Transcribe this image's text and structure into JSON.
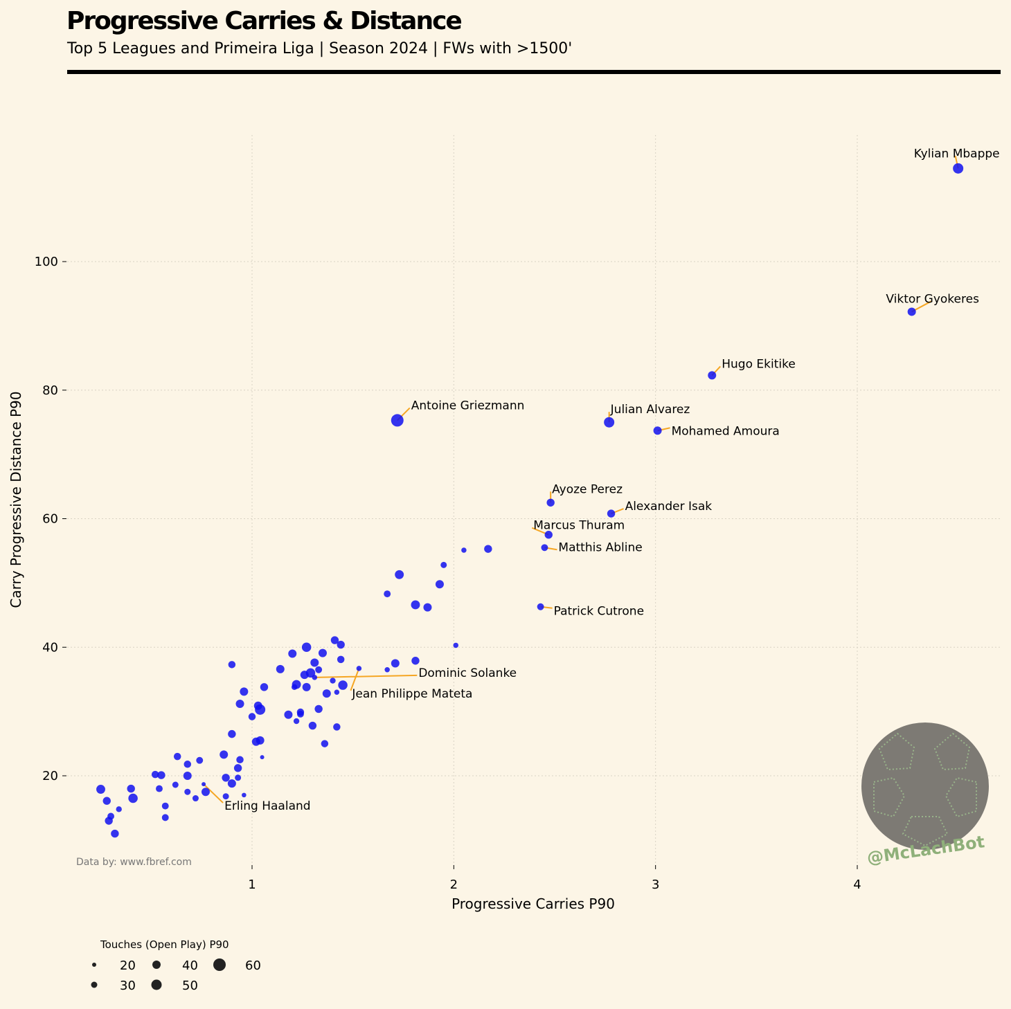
{
  "title": "Progressive Carries & Distance",
  "subtitle": "Top 5 Leagues and Primeira Liga | Season 2024 | FWs with >1500'",
  "source": "Data by: www.fbref.com",
  "watermark": "@McLachBot",
  "chart_data": {
    "type": "scatter",
    "xlabel": "Progressive Carries P90",
    "ylabel": "Carry Progressive Distance P90",
    "xlim": [
      0.08,
      4.7
    ],
    "ylim": [
      7,
      120
    ],
    "x_ticks": [
      1,
      2,
      3,
      4
    ],
    "y_ticks": [
      20,
      40,
      60,
      80,
      100
    ],
    "grid": true,
    "colors": {
      "point": "#1010ee",
      "annotation_line": "#f5a623",
      "background": "#fcf5e6"
    },
    "size_legend": {
      "title": "Touches (Open Play) P90",
      "values": [
        20,
        30,
        40,
        50,
        60
      ]
    },
    "labeled_points": [
      {
        "name": "Kylian Mbappe",
        "x": 4.5,
        "y": 114.5,
        "touches": 50
      },
      {
        "name": "Viktor Gyokeres",
        "x": 4.27,
        "y": 92.2,
        "touches": 40
      },
      {
        "name": "Hugo Ekitike",
        "x": 3.28,
        "y": 82.3,
        "touches": 40
      },
      {
        "name": "Antoine Griezmann",
        "x": 1.72,
        "y": 75.3,
        "touches": 60
      },
      {
        "name": "Julian Alvarez",
        "x": 2.77,
        "y": 75.0,
        "touches": 50
      },
      {
        "name": "Mohamed Amoura",
        "x": 3.01,
        "y": 73.7,
        "touches": 40
      },
      {
        "name": "Ayoze Perez",
        "x": 2.48,
        "y": 62.5,
        "touches": 38
      },
      {
        "name": "Alexander Isak",
        "x": 2.78,
        "y": 60.8,
        "touches": 38
      },
      {
        "name": "Marcus Thuram",
        "x": 2.47,
        "y": 57.5,
        "touches": 38
      },
      {
        "name": "Matthis Abline",
        "x": 2.45,
        "y": 55.5,
        "touches": 33
      },
      {
        "name": "Patrick Cutrone",
        "x": 2.43,
        "y": 46.3,
        "touches": 33
      },
      {
        "name": "Dominic Solanke",
        "x": 1.31,
        "y": 35.3,
        "touches": 25
      },
      {
        "name": "Jean Philippe Mateta",
        "x": 1.53,
        "y": 36.7,
        "touches": 25
      },
      {
        "name": "Erling Haaland",
        "x": 0.76,
        "y": 18.7,
        "touches": 20
      }
    ],
    "points": [
      {
        "x": 2.05,
        "y": 55.1,
        "touches": 25
      },
      {
        "x": 2.17,
        "y": 55.3,
        "touches": 38
      },
      {
        "x": 1.95,
        "y": 52.8,
        "touches": 30
      },
      {
        "x": 1.73,
        "y": 51.3,
        "touches": 43
      },
      {
        "x": 1.93,
        "y": 49.8,
        "touches": 40
      },
      {
        "x": 1.67,
        "y": 48.3,
        "touches": 33
      },
      {
        "x": 1.81,
        "y": 46.6,
        "touches": 43
      },
      {
        "x": 1.87,
        "y": 46.2,
        "touches": 40
      },
      {
        "x": 2.01,
        "y": 40.3,
        "touches": 25
      },
      {
        "x": 1.41,
        "y": 41.1,
        "touches": 38
      },
      {
        "x": 1.44,
        "y": 40.4,
        "touches": 38
      },
      {
        "x": 1.27,
        "y": 40.0,
        "touches": 45
      },
      {
        "x": 1.35,
        "y": 39.1,
        "touches": 40
      },
      {
        "x": 1.2,
        "y": 39.0,
        "touches": 40
      },
      {
        "x": 1.44,
        "y": 38.1,
        "touches": 35
      },
      {
        "x": 1.81,
        "y": 37.9,
        "touches": 38
      },
      {
        "x": 1.31,
        "y": 37.6,
        "touches": 40
      },
      {
        "x": 1.71,
        "y": 37.5,
        "touches": 40
      },
      {
        "x": 0.9,
        "y": 37.3,
        "touches": 35
      },
      {
        "x": 1.14,
        "y": 36.6,
        "touches": 40
      },
      {
        "x": 1.67,
        "y": 36.5,
        "touches": 25
      },
      {
        "x": 1.33,
        "y": 36.5,
        "touches": 33
      },
      {
        "x": 1.29,
        "y": 36.0,
        "touches": 45
      },
      {
        "x": 1.26,
        "y": 35.7,
        "touches": 40
      },
      {
        "x": 1.4,
        "y": 34.8,
        "touches": 28
      },
      {
        "x": 1.45,
        "y": 34.1,
        "touches": 45
      },
      {
        "x": 1.22,
        "y": 34.2,
        "touches": 43
      },
      {
        "x": 1.06,
        "y": 33.8,
        "touches": 38
      },
      {
        "x": 1.27,
        "y": 33.8,
        "touches": 40
      },
      {
        "x": 1.21,
        "y": 33.8,
        "touches": 28
      },
      {
        "x": 0.96,
        "y": 33.1,
        "touches": 40
      },
      {
        "x": 1.42,
        "y": 33.0,
        "touches": 25
      },
      {
        "x": 1.37,
        "y": 32.8,
        "touches": 40
      },
      {
        "x": 0.94,
        "y": 31.2,
        "touches": 40
      },
      {
        "x": 1.03,
        "y": 30.9,
        "touches": 40
      },
      {
        "x": 1.04,
        "y": 30.3,
        "touches": 50
      },
      {
        "x": 1.33,
        "y": 30.4,
        "touches": 38
      },
      {
        "x": 1.24,
        "y": 29.9,
        "touches": 35
      },
      {
        "x": 1.24,
        "y": 29.6,
        "touches": 33
      },
      {
        "x": 1.18,
        "y": 29.5,
        "touches": 40
      },
      {
        "x": 1.0,
        "y": 29.2,
        "touches": 35
      },
      {
        "x": 1.22,
        "y": 28.5,
        "touches": 28
      },
      {
        "x": 1.3,
        "y": 27.8,
        "touches": 38
      },
      {
        "x": 1.42,
        "y": 27.6,
        "touches": 35
      },
      {
        "x": 0.9,
        "y": 26.5,
        "touches": 38
      },
      {
        "x": 1.04,
        "y": 25.5,
        "touches": 40
      },
      {
        "x": 1.02,
        "y": 25.3,
        "touches": 40
      },
      {
        "x": 1.36,
        "y": 25.0,
        "touches": 35
      },
      {
        "x": 0.86,
        "y": 23.3,
        "touches": 40
      },
      {
        "x": 0.63,
        "y": 23.0,
        "touches": 35
      },
      {
        "x": 1.05,
        "y": 22.9,
        "touches": 20
      },
      {
        "x": 0.74,
        "y": 22.4,
        "touches": 33
      },
      {
        "x": 0.94,
        "y": 22.5,
        "touches": 35
      },
      {
        "x": 0.68,
        "y": 21.8,
        "touches": 35
      },
      {
        "x": 0.93,
        "y": 21.2,
        "touches": 38
      },
      {
        "x": 0.52,
        "y": 20.2,
        "touches": 35
      },
      {
        "x": 0.55,
        "y": 20.1,
        "touches": 38
      },
      {
        "x": 0.68,
        "y": 20.0,
        "touches": 40
      },
      {
        "x": 0.87,
        "y": 19.7,
        "touches": 38
      },
      {
        "x": 0.93,
        "y": 19.7,
        "touches": 30
      },
      {
        "x": 0.9,
        "y": 18.8,
        "touches": 40
      },
      {
        "x": 0.62,
        "y": 18.6,
        "touches": 30
      },
      {
        "x": 0.77,
        "y": 17.5,
        "touches": 40
      },
      {
        "x": 0.54,
        "y": 18.0,
        "touches": 33
      },
      {
        "x": 0.68,
        "y": 17.5,
        "touches": 30
      },
      {
        "x": 0.4,
        "y": 18.0,
        "touches": 38
      },
      {
        "x": 0.25,
        "y": 17.9,
        "touches": 43
      },
      {
        "x": 0.41,
        "y": 16.5,
        "touches": 45
      },
      {
        "x": 0.72,
        "y": 16.5,
        "touches": 30
      },
      {
        "x": 0.87,
        "y": 16.8,
        "touches": 30
      },
      {
        "x": 0.96,
        "y": 17.0,
        "touches": 22
      },
      {
        "x": 0.28,
        "y": 16.1,
        "touches": 38
      },
      {
        "x": 0.57,
        "y": 15.3,
        "touches": 33
      },
      {
        "x": 0.34,
        "y": 14.8,
        "touches": 28
      },
      {
        "x": 0.3,
        "y": 13.7,
        "touches": 33
      },
      {
        "x": 0.57,
        "y": 13.5,
        "touches": 33
      },
      {
        "x": 0.29,
        "y": 13.0,
        "touches": 38
      },
      {
        "x": 0.32,
        "y": 11.0,
        "touches": 38
      }
    ]
  }
}
